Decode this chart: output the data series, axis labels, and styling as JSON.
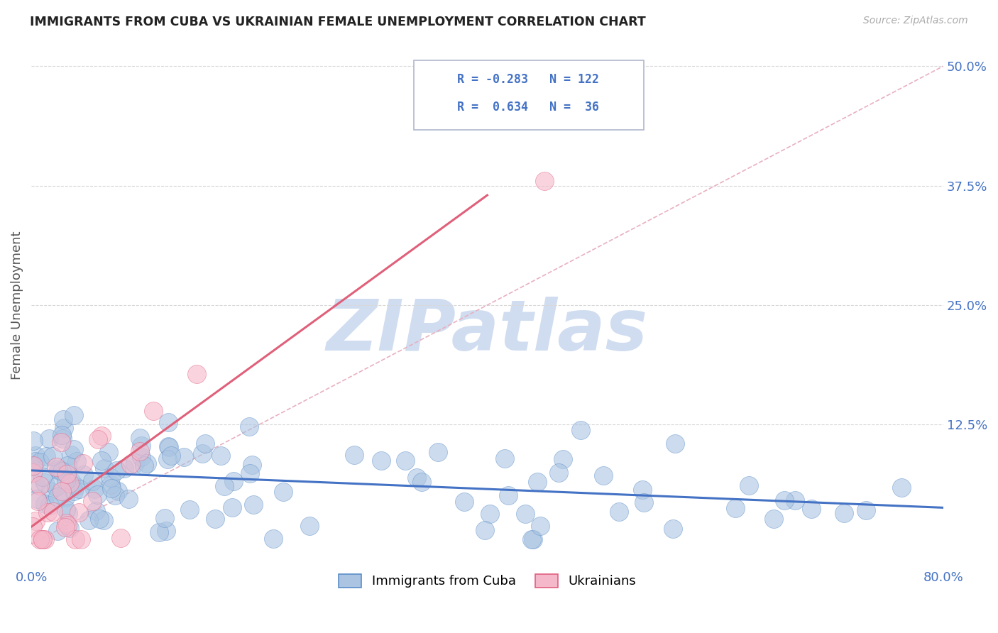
{
  "title": "IMMIGRANTS FROM CUBA VS UKRAINIAN FEMALE UNEMPLOYMENT CORRELATION CHART",
  "source": "Source: ZipAtlas.com",
  "ylabel": "Female Unemployment",
  "y_tick_labels": [
    "12.5%",
    "25.0%",
    "37.5%",
    "50.0%"
  ],
  "y_tick_values": [
    0.125,
    0.25,
    0.375,
    0.5
  ],
  "x_min": 0.0,
  "x_max": 0.8,
  "y_min": -0.025,
  "y_max": 0.525,
  "legend_label_blue": "Immigrants from Cuba",
  "legend_label_pink": "Ukrainians",
  "R_blue": -0.283,
  "N_blue": 122,
  "R_pink": 0.634,
  "N_pink": 36,
  "blue_scatter_color": "#aac4e2",
  "pink_scatter_color": "#f5b8cb",
  "blue_edge_color": "#5b8ec8",
  "pink_edge_color": "#e06080",
  "blue_line_color": "#4472c4",
  "pink_line_color": "#e0607a",
  "diag_line_color": "#e8b0c0",
  "title_color": "#222222",
  "source_color": "#aaaaaa",
  "axis_label_color": "#4472c4",
  "legend_text_color": "#4472c4",
  "background_color": "#ffffff",
  "grid_color": "#d8d8d8",
  "watermark_color": "#d0ddf0",
  "blue_trend_x0": 0.0,
  "blue_trend_y0": 0.077,
  "blue_trend_x1": 0.8,
  "blue_trend_y1": 0.038,
  "pink_trend_x0": 0.0,
  "pink_trend_y0": 0.018,
  "pink_trend_x1": 0.4,
  "pink_trend_y1": 0.365
}
